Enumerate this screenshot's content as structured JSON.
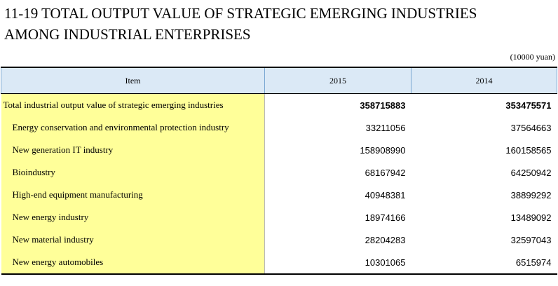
{
  "title": {
    "line1": "11-19  TOTAL OUTPUT VALUE OF STRATEGIC EMERGING INDUSTRIES",
    "line2": "AMONG INDUSTRIAL ENTERPRISES"
  },
  "unit": "(10000 yuan)",
  "table": {
    "headers": [
      "Item",
      "2015",
      "2014"
    ],
    "rows": [
      {
        "item": "Total industrial output value of strategic emerging industries",
        "v2015": "358715883",
        "v2014": "353475571"
      },
      {
        "item": "Energy conservation and environmental protection industry",
        "v2015": "33211056",
        "v2014": "37564663"
      },
      {
        "item": "New generation IT industry",
        "v2015": "158908990",
        "v2014": "160158565"
      },
      {
        "item": "Bioindustry",
        "v2015": "68167942",
        "v2014": "64250942"
      },
      {
        "item": "High-end equipment manufacturing",
        "v2015": "40948381",
        "v2014": "38899292"
      },
      {
        "item": "New energy industry",
        "v2015": "18974166",
        "v2014": "13489092"
      },
      {
        "item": "New material industry",
        "v2015": "28204283",
        "v2014": "32597043"
      },
      {
        "item": "New energy automobiles",
        "v2015": "10301065",
        "v2014": "6515974"
      }
    ]
  }
}
